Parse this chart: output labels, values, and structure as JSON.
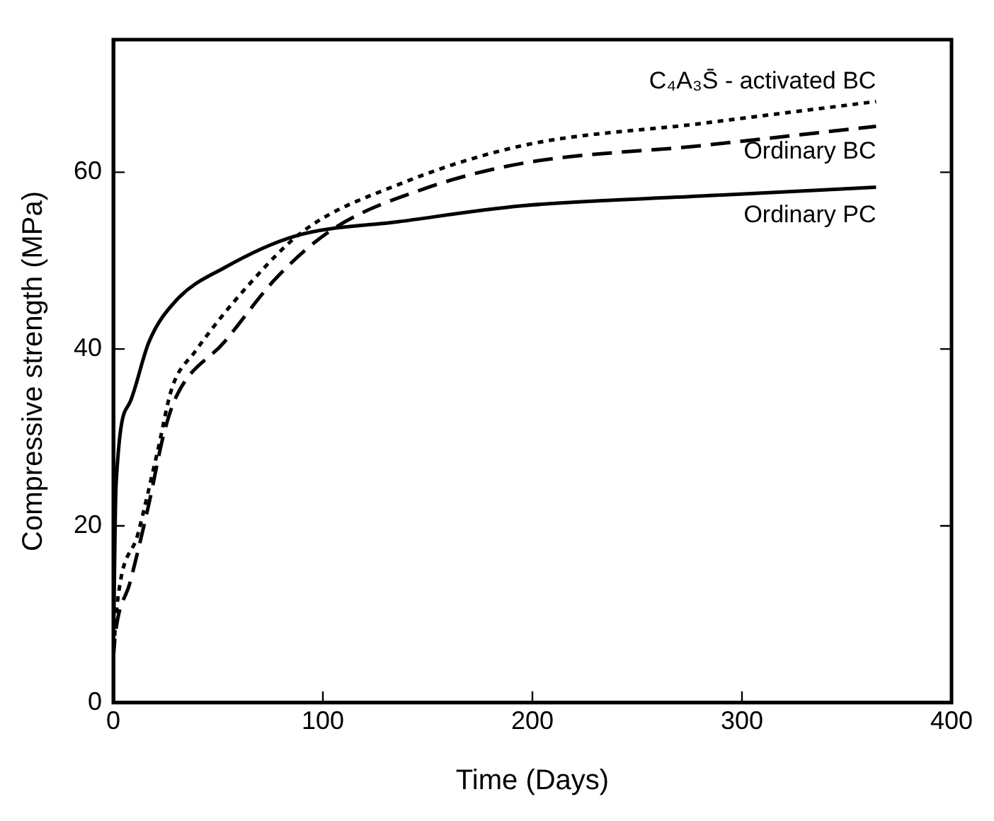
{
  "chart_data": {
    "type": "line",
    "xlabel": "Time (Days)",
    "ylabel": "Compressive strength (MPa)",
    "xlim": [
      0,
      400
    ],
    "xticks": [
      0,
      100,
      200,
      300,
      400
    ],
    "ylim": [
      0,
      75
    ],
    "yticks": [
      0,
      20,
      40,
      60
    ],
    "grid": false,
    "legend": false,
    "marker": "none",
    "series": [
      {
        "name": "C₄A₃S̄ - activated BC",
        "color": "#000000",
        "line_style": "dotted",
        "x": [
          0,
          1.5,
          12,
          21,
          28,
          39,
          64,
          91,
          136,
          195,
          280,
          364
        ],
        "values": [
          5,
          10.4,
          19.3,
          28.3,
          35.6,
          39.7,
          47.1,
          53.4,
          58.6,
          63,
          65.5,
          68
        ]
      },
      {
        "name": "Ordinary BC",
        "color": "#000000",
        "line_style": "dashed",
        "x": [
          0,
          1,
          8,
          17,
          24,
          30,
          53,
          78,
          105,
          148,
          195,
          280,
          364
        ],
        "values": [
          5,
          7.8,
          13.6,
          22.5,
          30.3,
          34.6,
          40.8,
          48.1,
          53.6,
          58.1,
          61,
          63,
          65.2
        ]
      },
      {
        "name": "Ordinary PC",
        "color": "#000000",
        "line_style": "solid",
        "x": [
          0,
          1.3,
          8,
          17,
          30,
          53,
          87,
          136,
          195,
          280,
          364
        ],
        "values": [
          5,
          24.6,
          34,
          40.8,
          45.5,
          49.2,
          52.8,
          54.4,
          56.2,
          57.3,
          58.3
        ]
      }
    ]
  }
}
